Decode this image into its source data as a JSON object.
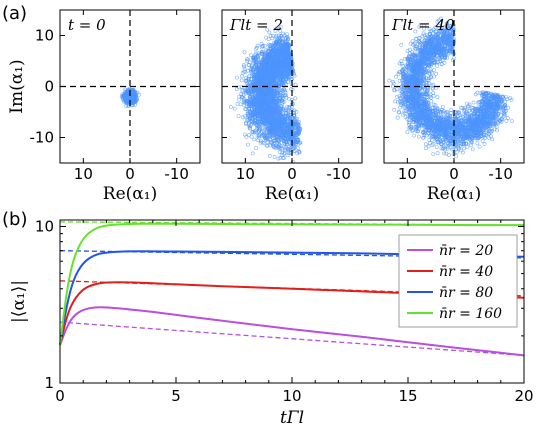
{
  "figure": {
    "panel_a": "(a)",
    "panel_b": "(b)"
  },
  "chart_data": [
    {
      "type": "scatter",
      "panel": "(a) left",
      "annotation": "t = 0",
      "xlabel": "Re(α₁)",
      "ylabel": "Im(α₁)",
      "xlim": [
        15,
        -15
      ],
      "ylim": [
        -15,
        15
      ],
      "xticks": [
        "10",
        "0",
        "-10"
      ],
      "yticks": [
        "10",
        "0",
        "-10"
      ],
      "color": "#4d94ff",
      "cloud": {
        "center": [
          0,
          -2
        ],
        "radius": 1.5
      }
    },
    {
      "type": "scatter",
      "panel": "(a) middle",
      "annotation": "Γlt = 2",
      "xlabel": "Re(α₁)",
      "xlim": [
        15,
        -15
      ],
      "ylim": [
        -15,
        15
      ],
      "xticks": [
        "10",
        "0",
        "-10"
      ],
      "color": "#4d94ff",
      "cloud": {
        "ring_center": [
          0,
          0
        ],
        "radius_mean": 8,
        "angle_range_deg": [
          -95,
          80
        ]
      }
    },
    {
      "type": "scatter",
      "panel": "(a) right",
      "annotation": "Γlt = 40",
      "xlabel": "Re(α₁)",
      "xlim": [
        15,
        -15
      ],
      "ylim": [
        -15,
        15
      ],
      "xticks": [
        "10",
        "0",
        "-10"
      ],
      "color": "#4d94ff",
      "cloud": {
        "ring_center": [
          0,
          0
        ],
        "radius_mean": 9,
        "angle_range_deg": [
          -170,
          90
        ]
      }
    },
    {
      "type": "line",
      "panel": "(b)",
      "xlabel": "tΓl",
      "ylabel": "|⟨α₁⟩|",
      "xlim": [
        0,
        20
      ],
      "ylim": [
        1,
        11
      ],
      "yscale": "log",
      "xticks": [
        "0",
        "5",
        "10",
        "15",
        "20"
      ],
      "yticks": [
        "1",
        "10"
      ],
      "legend_position": "right",
      "series": [
        {
          "name": "n̄r = 20",
          "color": "#b94fe0",
          "x": [
            0,
            0.3,
            0.6,
            1,
            1.5,
            2,
            3,
            4,
            6,
            8,
            10,
            12,
            14,
            16,
            18,
            20
          ],
          "y": [
            1.75,
            2.3,
            2.7,
            2.95,
            3.05,
            3.05,
            2.95,
            2.85,
            2.6,
            2.4,
            2.2,
            2.05,
            1.9,
            1.75,
            1.62,
            1.5
          ],
          "dashed": {
            "x": [
              0,
              20
            ],
            "y": [
              2.45,
              1.5
            ]
          }
        },
        {
          "name": "n̄r = 40",
          "color": "#e0201c",
          "x": [
            0,
            0.3,
            0.6,
            1,
            1.5,
            2,
            3,
            4,
            6,
            8,
            10,
            12,
            14,
            16,
            18,
            20
          ],
          "y": [
            1.75,
            2.7,
            3.4,
            4.0,
            4.3,
            4.4,
            4.4,
            4.35,
            4.2,
            4.1,
            4.0,
            3.9,
            3.8,
            3.7,
            3.6,
            3.5
          ],
          "dashed": {
            "x": [
              0,
              20
            ],
            "y": [
              4.5,
              3.6
            ]
          }
        },
        {
          "name": "n̄r = 80",
          "color": "#2255e8",
          "x": [
            0,
            0.3,
            0.6,
            1,
            1.5,
            2,
            3,
            4,
            6,
            8,
            10,
            12,
            14,
            16,
            18,
            20
          ],
          "y": [
            1.75,
            3.2,
            4.7,
            5.9,
            6.6,
            6.85,
            6.95,
            6.95,
            6.9,
            6.85,
            6.8,
            6.75,
            6.7,
            6.6,
            6.5,
            6.4
          ],
          "dashed": {
            "x": [
              0,
              20
            ],
            "y": [
              7.0,
              6.3
            ]
          }
        },
        {
          "name": "n̄r = 160",
          "color": "#66e22c",
          "x": [
            0,
            0.3,
            0.6,
            1,
            1.5,
            2,
            3,
            4,
            6,
            8,
            10,
            12,
            14,
            16,
            18,
            20
          ],
          "y": [
            1.75,
            4.0,
            6.4,
            8.5,
            9.7,
            10.2,
            10.4,
            10.4,
            10.4,
            10.35,
            10.3,
            10.3,
            10.25,
            10.25,
            10.2,
            10.2
          ],
          "dashed": {
            "x": [
              0,
              20
            ],
            "y": [
              10.7,
              10.2
            ]
          }
        }
      ]
    }
  ]
}
